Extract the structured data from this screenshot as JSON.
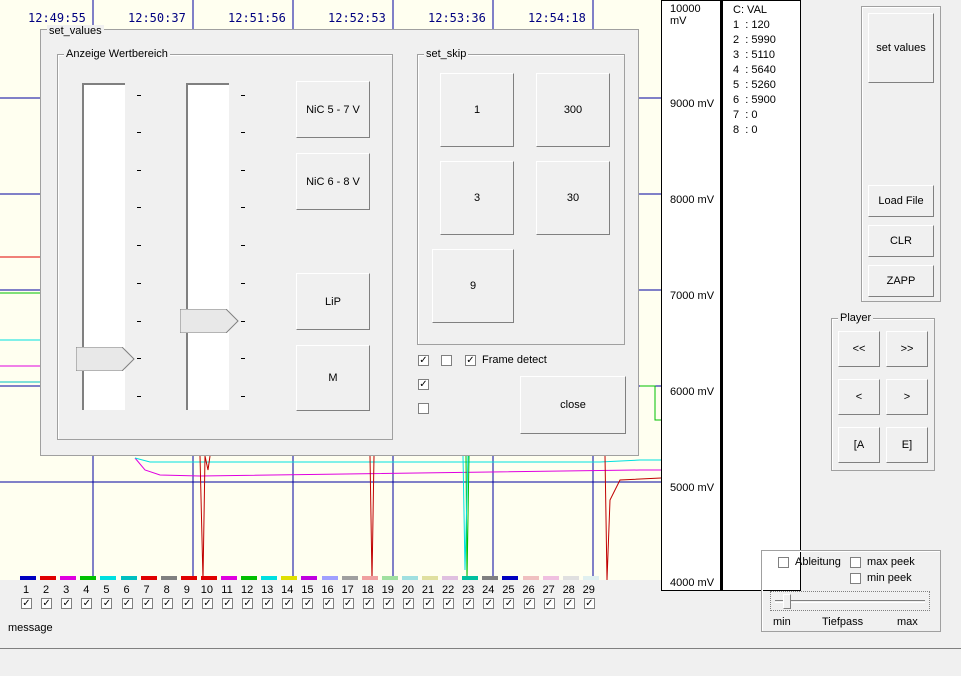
{
  "plot": {
    "times": [
      "12:49:55",
      "12:50:37",
      "12:51:56",
      "12:52:53",
      "12:53:36",
      "12:54:18"
    ],
    "y_axis": [
      "10000 mV",
      "9000 mV",
      "8000 mV",
      "7000 mV",
      "6000 mV",
      "5000 mV",
      "4000 mV"
    ]
  },
  "values": {
    "header": "C: VAL",
    "rows": [
      "1  : 120",
      "2  : 5990",
      "3  : 5110",
      "4  : 5640",
      "5  : 5260",
      "6  : 5900",
      "7  : 0",
      "8  : 0"
    ]
  },
  "right_panel": {
    "set_values": "set values",
    "load_file": "Load File",
    "clr": "CLR",
    "zapp": "ZAPP"
  },
  "player": {
    "title": "Player",
    "buttons": [
      "<<",
      ">>",
      "<",
      ">",
      "[A",
      "E]"
    ]
  },
  "filter": {
    "ableitung": "Ableitung",
    "max_peek": "max peek",
    "min_peek": "min peek",
    "min": "min",
    "tiefpass": "Tiefpass",
    "max": "max"
  },
  "dialog": {
    "title": "set_values",
    "range_group": "Anzeige Wertbereich",
    "skip_group": "set_skip",
    "presets": [
      "NiC 5 - 7 V",
      "NiC 6 - 8 V",
      "LiP",
      "M"
    ],
    "skip_buttons": [
      "1",
      "300",
      "3",
      "30",
      "9"
    ],
    "frame_detect": "Frame detect",
    "close": "close"
  },
  "channels": {
    "numbers": [
      "1",
      "2",
      "3",
      "4",
      "5",
      "6",
      "7",
      "8",
      "9",
      "10",
      "11",
      "12",
      "13",
      "14",
      "15",
      "16",
      "17",
      "18",
      "19",
      "20",
      "21",
      "22",
      "23",
      "24",
      "25",
      "26",
      "27",
      "28",
      "29"
    ],
    "colors": [
      "#0000c0",
      "#e00000",
      "#e000e0",
      "#00c000",
      "#00e0e0",
      "#00c0c0",
      "#e00000",
      "#808080",
      "#e00000",
      "#e00000",
      "#e000e0",
      "#00c000",
      "#00e0e0",
      "#e0e000",
      "#c000e0",
      "#a0a0ff",
      "#a0a0a0",
      "#f0a0a0",
      "#a0e0a0",
      "#a0e0e0",
      "#e0e0a0",
      "#e0c0e0",
      "#00c0a0",
      "#808080",
      "#0000c0",
      "#f0c0c0",
      "#f0c0e0",
      "#e0e0e0",
      "#e0f0f0"
    ]
  },
  "status": {
    "message": "message"
  }
}
